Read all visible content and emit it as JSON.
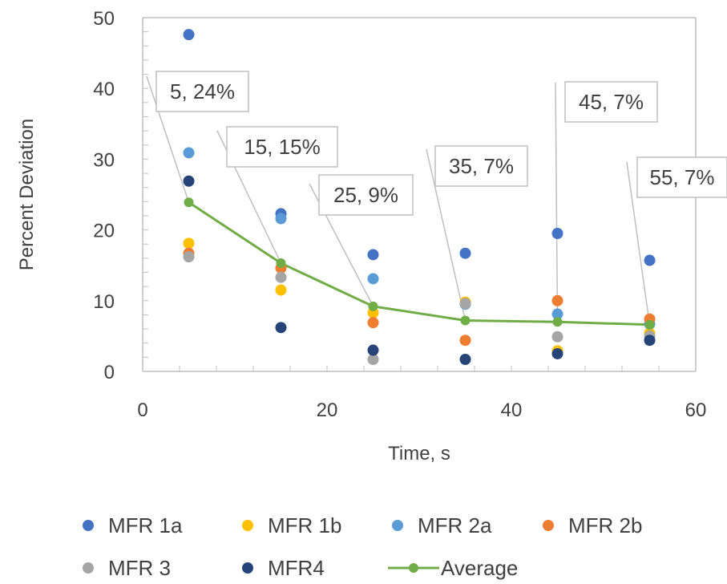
{
  "chart_data": {
    "type": "scatter",
    "title": "",
    "xlabel": "Time, s",
    "ylabel": "Percent Deviation",
    "xlim": [
      0,
      60
    ],
    "ylim": [
      0,
      50
    ],
    "x_ticks": [
      0,
      20,
      40,
      60
    ],
    "y_ticks": [
      0,
      10,
      20,
      30,
      40,
      50
    ],
    "grid": false,
    "legend_position": "bottom",
    "series": [
      {
        "name": "MFR 1a",
        "kind": "marker",
        "color": "#4472C4",
        "x": [
          5,
          15,
          25,
          35,
          45,
          55
        ],
        "y": [
          47.6,
          22.3,
          16.5,
          16.7,
          19.5,
          15.7
        ]
      },
      {
        "name": "MFR 1b",
        "kind": "marker",
        "color": "#FFC000",
        "x": [
          5,
          15,
          25,
          35,
          45,
          55
        ],
        "y": [
          18.1,
          11.5,
          8.3,
          9.8,
          2.9,
          5.4
        ]
      },
      {
        "name": "MFR 2a",
        "kind": "marker",
        "color": "#5B9BD5",
        "x": [
          5,
          15,
          25,
          35,
          45,
          55
        ],
        "y": [
          30.9,
          21.6,
          13.1,
          9.5,
          8.1,
          6.7
        ]
      },
      {
        "name": "MFR 2b",
        "kind": "marker",
        "color": "#ED7D31",
        "x": [
          5,
          15,
          25,
          35,
          45,
          55
        ],
        "y": [
          16.7,
          14.6,
          6.9,
          4.4,
          10.0,
          7.4
        ]
      },
      {
        "name": "MFR 3",
        "kind": "marker",
        "color": "#A5A5A5",
        "x": [
          5,
          15,
          25,
          35,
          45,
          55
        ],
        "y": [
          16.2,
          13.3,
          1.7,
          9.6,
          4.9,
          5.0
        ]
      },
      {
        "name": "MFR4",
        "kind": "marker",
        "color": "#264478",
        "x": [
          5,
          15,
          25,
          35,
          45,
          55
        ],
        "y": [
          26.9,
          6.2,
          3.0,
          1.7,
          2.5,
          4.4
        ]
      },
      {
        "name": "Average",
        "kind": "line",
        "color": "#70AD47",
        "x": [
          5,
          15,
          25,
          35,
          45,
          55
        ],
        "y": [
          23.9,
          15.3,
          9.2,
          7.2,
          7.0,
          6.6
        ]
      }
    ],
    "annotations": [
      {
        "text": "5, 24%",
        "x": 5,
        "y": 23.9
      },
      {
        "text": "15, 15%",
        "x": 15,
        "y": 15.3
      },
      {
        "text": "25, 9%",
        "x": 25,
        "y": 9.2
      },
      {
        "text": "35, 7%",
        "x": 35,
        "y": 7.2
      },
      {
        "text": "45, 7%",
        "x": 45,
        "y": 7.0
      },
      {
        "text": "55, 7%",
        "x": 55,
        "y": 6.6
      }
    ]
  }
}
